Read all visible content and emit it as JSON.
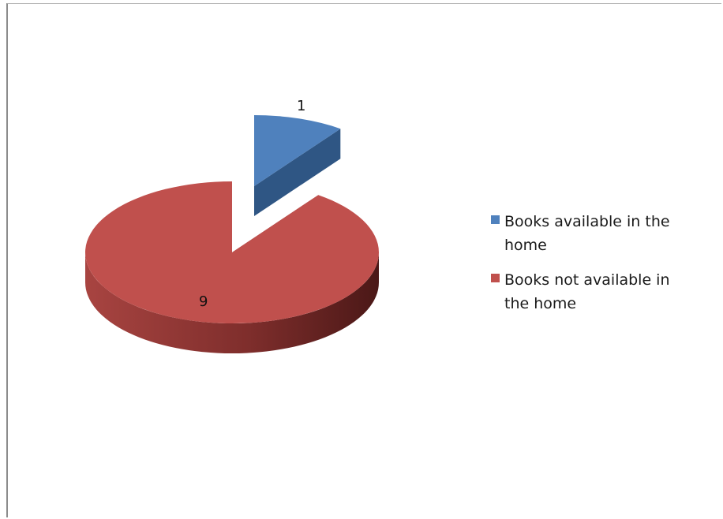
{
  "chart_data": {
    "type": "pie",
    "title": "",
    "style": "3d-exploded",
    "categories": [
      "Books available in the home",
      "Books not available in the home"
    ],
    "values": [
      1,
      9
    ],
    "data_labels": [
      "1",
      "9"
    ],
    "colors": [
      "#4f81bd",
      "#c0504d"
    ],
    "legend": {
      "position": "right",
      "entries": [
        "Books available in the home",
        "Books not available in the home"
      ]
    }
  }
}
